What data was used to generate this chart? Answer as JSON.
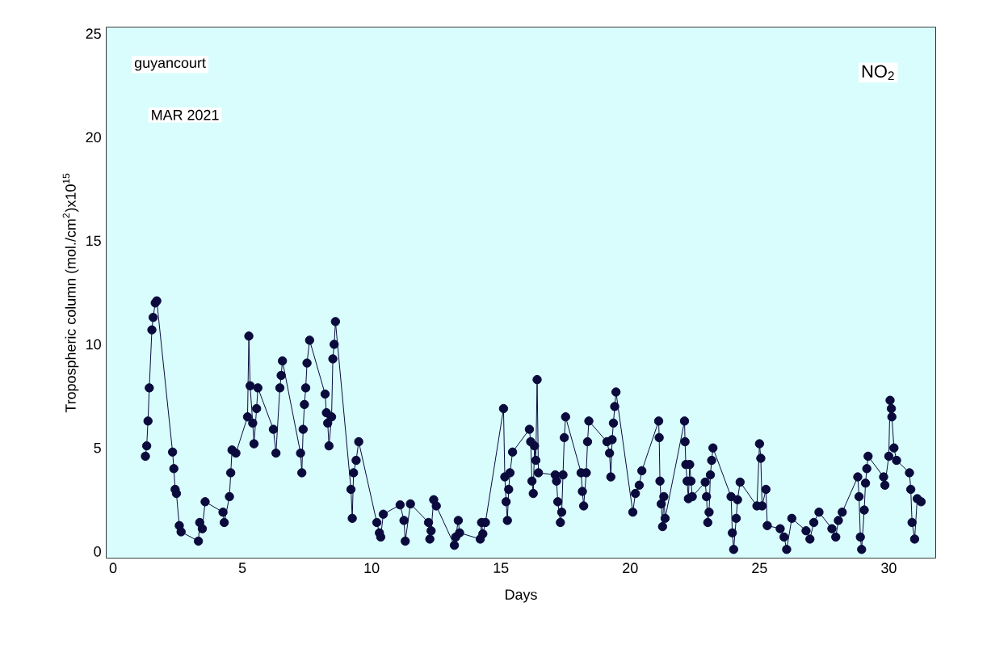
{
  "chart_data": {
    "type": "line",
    "xlabel": "Days",
    "ylabel": "Tropospheric column (mol./cm$^{2}$)x10$^{15}$",
    "annotations": [
      "guyancourt",
      "MAR 2021",
      "NO$_{2}$"
    ],
    "xlim": [
      -0.25,
      31.8
    ],
    "ylim": [
      -0.3,
      25.3
    ],
    "xticks": [
      0,
      5,
      10,
      15,
      20,
      25,
      30
    ],
    "yticks": [
      0,
      5,
      10,
      15,
      20,
      25
    ],
    "marker": "circle",
    "line_style": "solid",
    "series": [
      {
        "color": "#0a0a3c",
        "x": [
          1.25,
          1.3,
          1.35,
          1.4,
          1.5,
          1.55,
          1.63,
          1.69,
          2.3,
          2.35,
          2.4,
          2.45,
          2.56,
          2.63,
          3.3,
          3.35,
          3.45,
          3.56,
          4.25,
          4.3,
          4.5,
          4.55,
          4.6,
          4.75,
          5.2,
          5.25,
          5.3,
          5.4,
          5.45,
          5.55,
          5.6,
          6.2,
          6.3,
          6.45,
          6.5,
          6.55,
          7.25,
          7.3,
          7.35,
          7.4,
          7.45,
          7.5,
          7.6,
          8.2,
          8.25,
          8.3,
          8.35,
          8.45,
          8.5,
          8.55,
          8.6,
          9.2,
          9.25,
          9.3,
          9.4,
          9.5,
          10.2,
          10.3,
          10.35,
          10.45,
          11.1,
          11.25,
          11.3,
          11.5,
          12.2,
          12.25,
          12.3,
          12.4,
          12.5,
          13.2,
          13.25,
          13.35,
          13.4,
          14.2,
          14.25,
          14.3,
          14.4,
          15.1,
          15.15,
          15.2,
          15.25,
          15.3,
          15.35,
          15.45,
          16.1,
          16.15,
          16.2,
          16.25,
          16.3,
          16.35,
          16.4,
          16.45,
          17.1,
          17.15,
          17.2,
          17.3,
          17.35,
          17.4,
          17.45,
          17.5,
          18.1,
          18.15,
          18.2,
          18.3,
          18.35,
          18.4,
          19.1,
          19.2,
          19.25,
          19.3,
          19.35,
          19.4,
          19.45,
          20.1,
          20.2,
          20.35,
          20.45,
          21.1,
          21.12,
          21.15,
          21.2,
          21.25,
          21.3,
          21.35,
          22.1,
          22.12,
          22.15,
          22.2,
          22.25,
          22.3,
          22.35,
          22.4,
          22.9,
          22.95,
          23.0,
          23.05,
          23.1,
          23.15,
          23.2,
          23.9,
          23.95,
          24.0,
          24.1,
          24.15,
          24.25,
          24.9,
          25.0,
          25.05,
          25.1,
          25.25,
          25.3,
          25.8,
          25.95,
          26.05,
          26.25,
          26.8,
          26.95,
          27.1,
          27.3,
          27.8,
          27.95,
          28.05,
          28.2,
          28.8,
          28.85,
          28.9,
          28.95,
          29.05,
          29.1,
          29.15,
          29.2,
          29.8,
          29.85,
          30.0,
          30.05,
          30.1,
          30.12,
          30.2,
          30.3,
          30.8,
          30.85,
          30.9,
          31.0,
          31.1,
          31.25
        ],
        "values": [
          4.6,
          5.1,
          6.3,
          7.9,
          10.7,
          11.3,
          12.0,
          12.1,
          4.8,
          4.0,
          3.0,
          2.8,
          1.25,
          0.95,
          0.5,
          1.4,
          1.1,
          2.4,
          1.9,
          1.4,
          2.65,
          3.8,
          4.9,
          4.75,
          6.5,
          10.4,
          8.0,
          6.2,
          5.2,
          6.9,
          7.9,
          5.9,
          4.75,
          7.9,
          8.5,
          9.2,
          4.75,
          3.8,
          5.9,
          7.1,
          7.9,
          9.1,
          10.2,
          7.6,
          6.7,
          6.2,
          5.1,
          6.5,
          9.3,
          10.0,
          11.1,
          3.0,
          1.6,
          3.8,
          4.4,
          5.3,
          1.4,
          0.9,
          0.7,
          1.8,
          2.25,
          1.5,
          0.5,
          2.3,
          1.4,
          0.6,
          1.0,
          2.5,
          2.2,
          0.3,
          0.7,
          1.5,
          0.9,
          0.6,
          1.4,
          0.85,
          1.4,
          6.9,
          3.6,
          2.4,
          1.5,
          3.0,
          3.8,
          4.8,
          5.9,
          5.3,
          3.4,
          2.8,
          5.1,
          4.4,
          8.3,
          3.8,
          3.7,
          3.4,
          2.4,
          1.4,
          1.9,
          3.7,
          5.5,
          6.5,
          3.8,
          2.9,
          2.2,
          3.8,
          5.3,
          6.3,
          5.3,
          4.75,
          3.6,
          5.4,
          6.2,
          7.0,
          7.7,
          1.9,
          2.8,
          3.2,
          3.9,
          6.3,
          5.5,
          3.4,
          2.3,
          1.2,
          2.65,
          1.6,
          6.3,
          5.3,
          4.2,
          3.4,
          2.55,
          4.2,
          3.4,
          2.65,
          3.35,
          2.65,
          1.4,
          1.9,
          3.7,
          4.4,
          5.0,
          2.65,
          0.9,
          0.1,
          1.6,
          2.5,
          3.35,
          2.2,
          5.2,
          4.5,
          2.2,
          3.0,
          1.25,
          1.1,
          0.7,
          0.1,
          1.6,
          1.0,
          0.6,
          1.4,
          1.9,
          1.1,
          0.7,
          1.5,
          1.9,
          3.6,
          2.65,
          0.7,
          0.1,
          2.0,
          3.3,
          4.0,
          4.6,
          3.6,
          3.2,
          4.6,
          7.3,
          6.9,
          6.5,
          5.0,
          4.4,
          3.8,
          3.0,
          1.4,
          0.6,
          2.55,
          2.4
        ]
      }
    ]
  }
}
